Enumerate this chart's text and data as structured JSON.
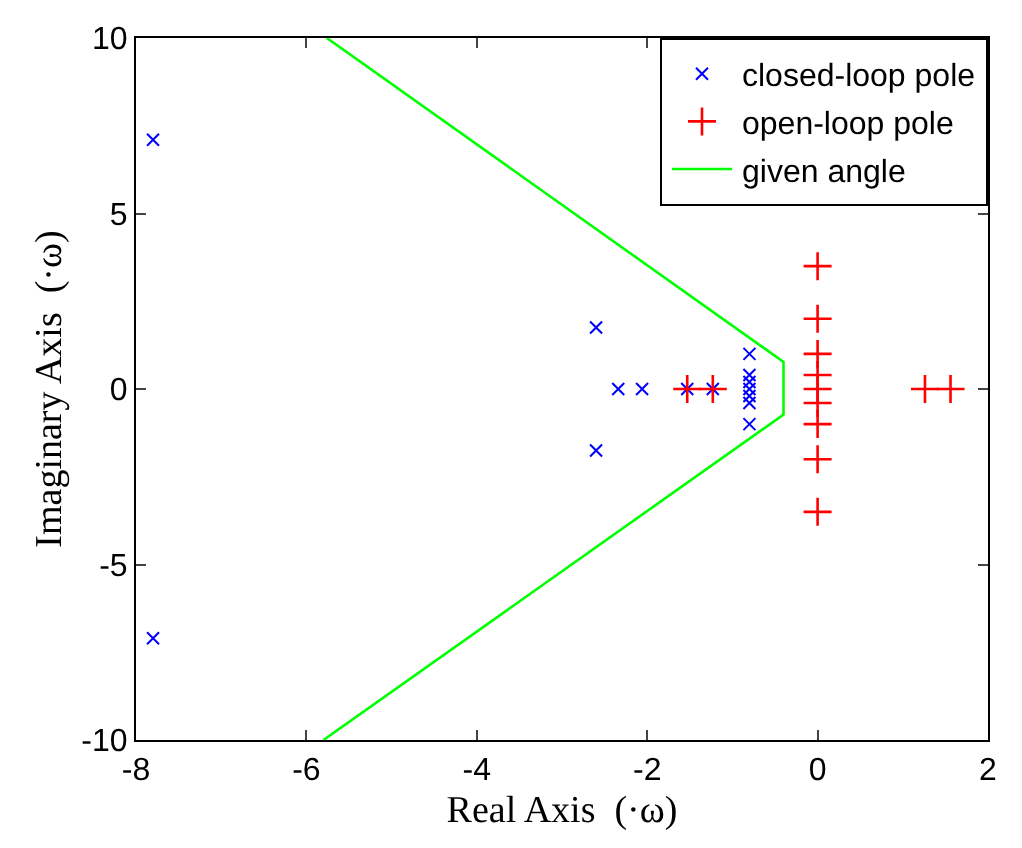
{
  "chart_data": {
    "type": "scatter",
    "xlabel": "Real Axis  (·ω)",
    "ylabel": "Imaginary Axis  (·ω)",
    "xlim": [
      -8,
      2
    ],
    "ylim": [
      -10,
      10
    ],
    "xticks": [
      -8,
      -6,
      -4,
      -2,
      0,
      2
    ],
    "yticks": [
      -10,
      -5,
      0,
      5,
      10
    ],
    "grid": false,
    "legend": "top right",
    "series": [
      {
        "name": "closed-loop pole",
        "marker": "x",
        "color": "#0000ff",
        "x": [
          -7.8,
          -7.8,
          -2.6,
          -2.6,
          -2.34,
          -2.06,
          -1.53,
          -1.23,
          -0.8,
          -0.8,
          -0.8,
          -0.8,
          -0.8,
          -0.8,
          -0.8
        ],
        "values": [
          7.1,
          -7.1,
          1.75,
          -1.75,
          0,
          0,
          0,
          0,
          1.0,
          0.4,
          0.2,
          0,
          -0.2,
          -0.4,
          -1.0
        ]
      },
      {
        "name": "open-loop pole",
        "marker": "cross",
        "color": "#ff0000",
        "x": [
          -1.53,
          -1.23,
          0,
          0,
          0,
          0,
          0,
          0,
          0,
          0,
          0,
          1.26,
          1.56
        ],
        "values": [
          0,
          0,
          3.5,
          2,
          1,
          0.4,
          0,
          -0.4,
          -1,
          -2,
          -3.5,
          0,
          0
        ]
      },
      {
        "name": "given angle",
        "type": "line",
        "marker": "none",
        "line_style": "solid",
        "color": "#00ff00",
        "x": [
          -5.76,
          -0.4,
          -0.4,
          -5.8
        ],
        "values": [
          10,
          0.77,
          -0.73,
          -10
        ]
      }
    ]
  }
}
